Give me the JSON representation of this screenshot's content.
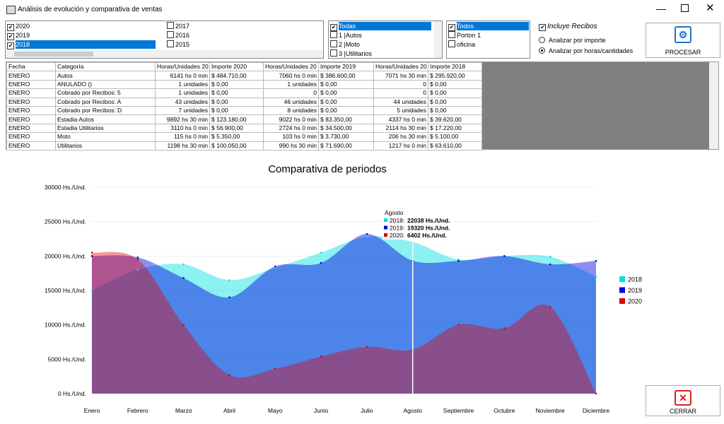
{
  "window": {
    "title": "Análisis de evolución y comparativa de ventas"
  },
  "years": [
    {
      "label": "2020",
      "checked": true,
      "selected": false
    },
    {
      "label": "2019",
      "checked": true,
      "selected": false
    },
    {
      "label": "2018",
      "checked": true,
      "selected": true
    },
    {
      "label": "2017",
      "checked": false,
      "selected": false
    },
    {
      "label": "2016",
      "checked": false,
      "selected": false
    },
    {
      "label": "2015",
      "checked": false,
      "selected": false
    }
  ],
  "category_list": [
    {
      "label": "Todas",
      "checked": true,
      "selected": true
    },
    {
      "label": "1 |Autos",
      "checked": false,
      "selected": false
    },
    {
      "label": "2 |Moto",
      "checked": false,
      "selected": false
    },
    {
      "label": "3 |Utilitarios",
      "checked": false,
      "selected": false
    }
  ],
  "port_list": [
    {
      "label": "Todos",
      "checked": true,
      "selected": true
    },
    {
      "label": "Porton 1",
      "checked": false,
      "selected": false
    },
    {
      "label": "oficina",
      "checked": false,
      "selected": false
    }
  ],
  "options": {
    "include_receipts": {
      "label": "Incluye Recibos",
      "checked": true
    },
    "radios": [
      {
        "label": "Analizar por importe",
        "selected": false
      },
      {
        "label": "Analizar por horas/cantidades",
        "selected": true
      }
    ]
  },
  "buttons": {
    "process": "PROCESAR",
    "close": "CERRAR"
  },
  "table": {
    "headers": [
      "Fecha",
      "Categoría",
      "Horas/Unidades 20",
      "Importe 2020",
      "Horas/Unidades 20",
      "Importe 2019",
      "Horas/Unidades 20",
      "Importe 2018"
    ],
    "rows": [
      [
        "ENERO",
        "Autos",
        "6141 hs 0 min",
        "$ 484.710,00",
        "7060 hs 0 min",
        "$ 386.600,00",
        "7071 hs 30 min",
        "$ 295.920,00"
      ],
      [
        "ENERO",
        "ANULADO ()",
        "1 unidades",
        "$ 0,00",
        "1 unidades",
        "$ 0,00",
        "0",
        "$ 0,00"
      ],
      [
        "ENERO",
        "Cobrado por Recibos: 5",
        "1 unidades",
        "$ 0,00",
        "0",
        "$ 0,00",
        "0",
        "$ 0,00"
      ],
      [
        "ENERO",
        "Cobrado por Recibos: A",
        "43 unidades",
        "$ 0,00",
        "46 unidades",
        "$ 0,00",
        "44 unidades",
        "$ 0,00"
      ],
      [
        "ENERO",
        "Cobrado por Recibos: D",
        "7 unidades",
        "$ 0,00",
        "8 unidades",
        "$ 0,00",
        "5 unidades",
        "$ 0,00"
      ],
      [
        "ENERO",
        "Estadia Autos",
        "9892 hs 30 min",
        "$ 123.180,00",
        "9022 hs 0 min",
        "$ 83.350,00",
        "4337 hs 0 min",
        "$ 39.620,00"
      ],
      [
        "ENERO",
        "Estadia Utilitarios",
        "3110 hs 0 min",
        "$ 56.900,00",
        "2724 hs 0 min",
        "$ 34.500,00",
        "2114 hs 30 min",
        "$ 17.220,00"
      ],
      [
        "ENERO",
        "Moto",
        "115 hs 0 min",
        "$ 5.350,00",
        "103 hs 0 min",
        "$ 3.730,00",
        "206 hs 30 min",
        "$ 5.100,00"
      ],
      [
        "ENERO",
        "Utilitarios",
        "1198 hs 30 min",
        "$ 100.050,00",
        "990 hs 30 min",
        "$ 71.690,00",
        "1217 hs 0 min",
        "$ 63.610,00"
      ]
    ]
  },
  "chart": {
    "type": "area",
    "title": "Comparativa de periodos",
    "categories": [
      "Enero",
      "Febrero",
      "Marzo",
      "Abril",
      "Mayo",
      "Junio",
      "Julio",
      "Agosto",
      "Septiembre",
      "Octubre",
      "Noviembre",
      "Diciembre"
    ],
    "series": [
      {
        "name": "2018",
        "color": "#00e0e0",
        "values": [
          15000,
          18000,
          18800,
          16500,
          18300,
          20500,
          22800,
          22038,
          19500,
          20000,
          19900,
          17000
        ]
      },
      {
        "name": "2019",
        "color": "#0000e0",
        "values": [
          20000,
          19800,
          16800,
          14000,
          18500,
          19000,
          23200,
          19320,
          19300,
          20000,
          18800,
          19300
        ]
      },
      {
        "name": "2020",
        "color": "#e00000",
        "values": [
          20500,
          19500,
          10000,
          2700,
          3600,
          5400,
          6800,
          6402,
          10000,
          9500,
          12600,
          0
        ]
      }
    ],
    "ylim": [
      0,
      30000
    ],
    "yticks": [
      {
        "value": 0,
        "label": "0 Hs./Und."
      },
      {
        "value": 5000,
        "label": "5000 Hs./Und."
      },
      {
        "value": 10000,
        "label": "10000 Hs./Und."
      },
      {
        "value": 15000,
        "label": "15000 Hs./Und."
      },
      {
        "value": 20000,
        "label": "20000 Hs./Und."
      },
      {
        "value": 25000,
        "label": "25000 Hs./Und."
      },
      {
        "value": 30000,
        "label": "30000 Hs./Und."
      }
    ],
    "tooltip": {
      "category": "Agosto",
      "rows": [
        {
          "series": "2018:",
          "value": "22038 Hs./Und."
        },
        {
          "series": "2019:",
          "value": "19320 Hs./Und."
        },
        {
          "series": "2020:",
          "value": "6402 Hs./Und."
        }
      ]
    }
  }
}
